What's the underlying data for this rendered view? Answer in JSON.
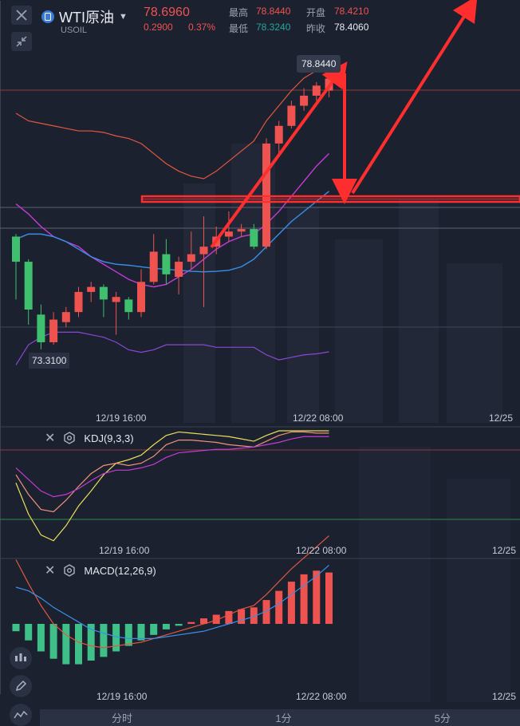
{
  "header": {
    "symbol_name": "WTI原油",
    "symbol_code": "USOIL",
    "price": "78.6960",
    "change": "0.2900",
    "change_pct": "0.37%",
    "high_label": "最高",
    "high_value": "78.8440",
    "open_label": "开盘",
    "open_value": "78.4210",
    "low_label": "最低",
    "low_value": "78.3240",
    "prev_label": "昨收",
    "prev_value": "78.4060"
  },
  "main_chart": {
    "high_marker": "78.8440",
    "low_marker": "73.3100",
    "x_ticks": [
      "12/19 16:00",
      "12/22 08:00",
      "12/25"
    ]
  },
  "kdj": {
    "title": "KDJ(9,3,3)",
    "x_ticks": [
      "12/19 16:00",
      "12/22 08:00",
      "12/25"
    ]
  },
  "macd": {
    "title": "MACD(12,26,9)",
    "x_ticks": [
      "12/19 16:00",
      "12/22 08:00",
      "12/25"
    ]
  },
  "tabs": [
    "分时",
    "1分",
    "5分"
  ],
  "colors": {
    "up": "#ef5350",
    "down": "#26a69a",
    "candle_down": "#3ec06e",
    "boll_upper": "#e2573e",
    "boll_mid": "#c43bd6",
    "ma_blue": "#3a8fe8",
    "annotation": "#ff2e2e"
  },
  "chart_data": {
    "type": "candlestick",
    "candles": [
      {
        "o": 75.55,
        "c": 75.05,
        "h": 75.6,
        "l": 74.3
      },
      {
        "o": 75.05,
        "c": 74.1,
        "h": 75.1,
        "l": 73.8
      },
      {
        "o": 74.0,
        "c": 73.45,
        "h": 74.2,
        "l": 73.31
      },
      {
        "o": 73.45,
        "c": 73.9,
        "h": 74.05,
        "l": 73.4
      },
      {
        "o": 73.85,
        "c": 74.05,
        "h": 74.15,
        "l": 73.75
      },
      {
        "o": 74.05,
        "c": 74.45,
        "h": 74.55,
        "l": 73.95
      },
      {
        "o": 74.45,
        "c": 74.55,
        "h": 74.65,
        "l": 74.25
      },
      {
        "o": 74.55,
        "c": 74.3,
        "h": 74.6,
        "l": 73.95
      },
      {
        "o": 74.25,
        "c": 74.35,
        "h": 74.45,
        "l": 73.6
      },
      {
        "o": 74.3,
        "c": 74.05,
        "h": 74.35,
        "l": 73.9
      },
      {
        "o": 74.05,
        "c": 74.65,
        "h": 74.9,
        "l": 73.95
      },
      {
        "o": 74.65,
        "c": 75.25,
        "h": 75.6,
        "l": 74.6
      },
      {
        "o": 75.2,
        "c": 74.8,
        "h": 75.5,
        "l": 74.6
      },
      {
        "o": 74.75,
        "c": 75.05,
        "h": 75.15,
        "l": 74.4
      },
      {
        "o": 75.05,
        "c": 75.2,
        "h": 75.65,
        "l": 74.9
      },
      {
        "o": 75.2,
        "c": 75.35,
        "h": 75.95,
        "l": 74.15
      },
      {
        "o": 75.35,
        "c": 75.55,
        "h": 75.75,
        "l": 75.2
      },
      {
        "o": 75.55,
        "c": 75.65,
        "h": 76.05,
        "l": 75.45
      },
      {
        "o": 75.65,
        "c": 75.7,
        "h": 75.8,
        "l": 75.55
      },
      {
        "o": 75.7,
        "c": 75.35,
        "h": 75.8,
        "l": 75.3
      },
      {
        "o": 75.35,
        "c": 77.4,
        "h": 77.5,
        "l": 75.3
      },
      {
        "o": 77.4,
        "c": 77.75,
        "h": 77.85,
        "l": 77.2
      },
      {
        "o": 77.75,
        "c": 78.15,
        "h": 78.25,
        "l": 77.7
      },
      {
        "o": 78.15,
        "c": 78.35,
        "h": 78.5,
        "l": 78.05
      },
      {
        "o": 78.35,
        "c": 78.55,
        "h": 78.62,
        "l": 78.25
      },
      {
        "o": 78.45,
        "c": 78.69,
        "h": 78.84,
        "l": 78.32
      }
    ],
    "boll_upper": [
      78.0,
      77.85,
      77.8,
      77.75,
      77.7,
      77.65,
      77.65,
      77.62,
      77.55,
      77.5,
      77.4,
      77.2,
      77.0,
      76.85,
      76.75,
      76.7,
      76.85,
      77.05,
      77.25,
      77.45,
      77.85,
      78.15,
      78.45,
      78.7,
      78.85,
      78.95
    ],
    "boll_mid": [
      76.2,
      76.0,
      75.75,
      75.55,
      75.45,
      75.35,
      75.15,
      75.0,
      74.85,
      74.7,
      74.6,
      74.55,
      74.6,
      74.75,
      74.9,
      75.1,
      75.3,
      75.45,
      75.55,
      75.6,
      75.8,
      76.05,
      76.35,
      76.65,
      76.95,
      77.2
    ],
    "boll_lower": [
      73.0,
      73.4,
      73.55,
      73.65,
      73.65,
      73.65,
      73.6,
      73.55,
      73.45,
      73.3,
      73.25,
      73.3,
      73.4,
      73.4,
      73.4,
      73.4,
      73.35,
      73.35,
      73.35,
      73.35,
      73.2,
      73.1,
      73.15,
      73.2,
      73.22,
      73.26
    ],
    "ma_blue": [
      75.5,
      75.6,
      75.6,
      75.55,
      75.45,
      75.3,
      75.15,
      75.05,
      75.0,
      74.98,
      74.95,
      74.92,
      74.9,
      74.88,
      74.86,
      74.85,
      74.86,
      74.88,
      74.95,
      75.1,
      75.35,
      75.6,
      75.85,
      76.05,
      76.25,
      76.45
    ],
    "kdj_k": [
      62,
      45,
      32,
      30,
      40,
      52,
      63,
      70,
      72,
      70,
      72,
      78,
      88,
      92,
      92,
      91,
      90,
      88,
      87,
      86,
      91,
      96,
      99,
      99,
      98,
      98
    ],
    "kdj_d": [
      68,
      58,
      48,
      43,
      45,
      50,
      57,
      63,
      66,
      66,
      68,
      71,
      77,
      81,
      82,
      83,
      84,
      84,
      85,
      86,
      88,
      90,
      93,
      95,
      95,
      95
    ],
    "kdj_j": [
      55,
      28,
      10,
      5,
      18,
      35,
      48,
      62,
      72,
      75,
      79,
      88,
      96,
      99,
      98,
      97,
      96,
      95,
      93,
      91,
      96,
      100,
      100,
      100,
      100,
      100
    ],
    "macd_hist": [
      -0.04,
      -0.09,
      -0.15,
      -0.19,
      -0.22,
      -0.22,
      -0.2,
      -0.18,
      -0.15,
      -0.12,
      -0.09,
      -0.06,
      -0.03,
      -0.01,
      0.01,
      0.03,
      0.05,
      0.07,
      0.08,
      0.09,
      0.13,
      0.18,
      0.23,
      0.27,
      0.29,
      0.28
    ],
    "macd_dif": [
      0.35,
      0.22,
      0.1,
      0.0,
      -0.06,
      -0.1,
      -0.12,
      -0.13,
      -0.12,
      -0.11,
      -0.1,
      -0.08,
      -0.06,
      -0.04,
      -0.02,
      0.0,
      0.02,
      0.05,
      0.08,
      0.1,
      0.16,
      0.23,
      0.3,
      0.36,
      0.42,
      0.48
    ],
    "macd_dea": [
      0.2,
      0.18,
      0.14,
      0.09,
      0.05,
      0.01,
      -0.03,
      -0.05,
      -0.07,
      -0.08,
      -0.08,
      -0.08,
      -0.07,
      -0.06,
      -0.05,
      -0.04,
      -0.02,
      0.0,
      0.02,
      0.04,
      0.07,
      0.11,
      0.16,
      0.21,
      0.26,
      0.32
    ]
  }
}
